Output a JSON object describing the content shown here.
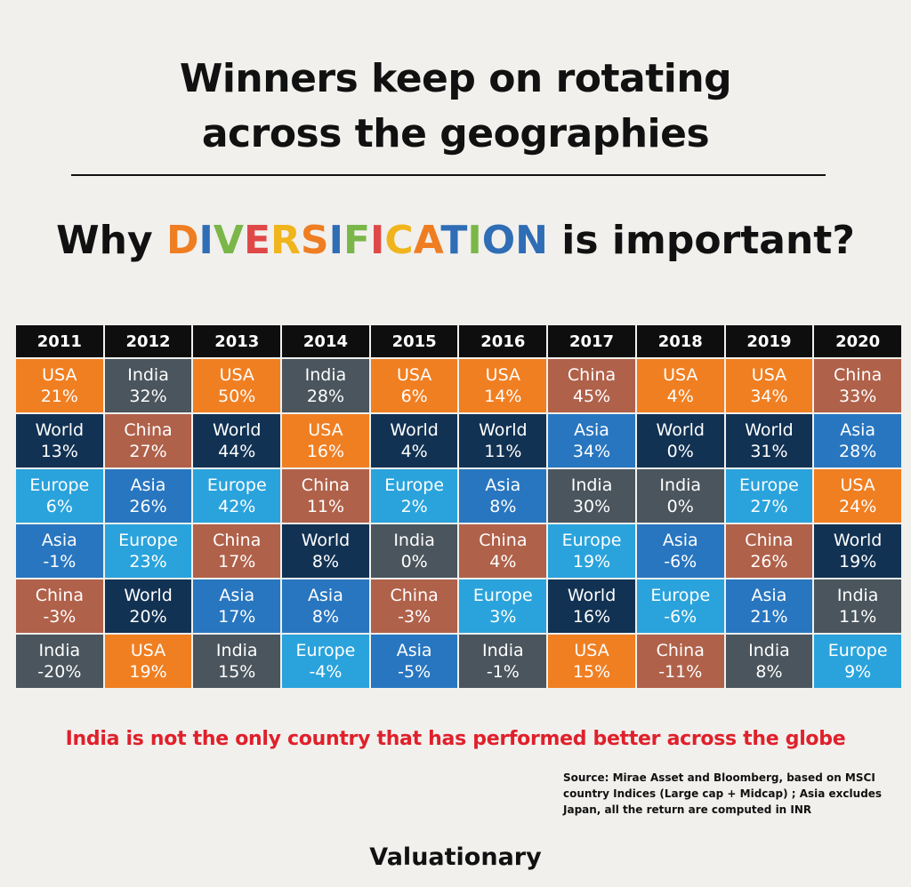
{
  "title": {
    "line1": "Winners keep on rotating",
    "line2": "across the geographies"
  },
  "subtitle": {
    "prefix": "Why ",
    "highlight": "DIVERSIFICATION",
    "suffix": " is important?",
    "highlight_colors": [
      "#ef7d22",
      "#2f6db5",
      "#7ab648",
      "#e04848",
      "#f0b41c",
      "#ef7d22",
      "#2f6db5",
      "#7ab648",
      "#e04848",
      "#f0b41c",
      "#ef7d22",
      "#2f6db5",
      "#7ab648",
      "#2f6db5",
      "#2f6db5"
    ]
  },
  "chart_data": {
    "type": "table",
    "columns": [
      "2011",
      "2012",
      "2013",
      "2014",
      "2015",
      "2016",
      "2017",
      "2018",
      "2019",
      "2020"
    ],
    "region_colors": {
      "USA": "#f07f22",
      "India": "#4a555d",
      "World": "#123253",
      "Europe": "#2aa3dc",
      "Asia": "#2876c0",
      "China": "#b0614a"
    },
    "ranks": [
      [
        {
          "region": "USA",
          "value": "21%"
        },
        {
          "region": "World",
          "value": "13%"
        },
        {
          "region": "Europe",
          "value": "6%"
        },
        {
          "region": "Asia",
          "value": "-1%"
        },
        {
          "region": "China",
          "value": "-3%"
        },
        {
          "region": "India",
          "value": "-20%"
        }
      ],
      [
        {
          "region": "India",
          "value": "32%"
        },
        {
          "region": "China",
          "value": "27%"
        },
        {
          "region": "Asia",
          "value": "26%"
        },
        {
          "region": "Europe",
          "value": "23%"
        },
        {
          "region": "World",
          "value": "20%"
        },
        {
          "region": "USA",
          "value": "19%"
        }
      ],
      [
        {
          "region": "USA",
          "value": "50%"
        },
        {
          "region": "World",
          "value": "44%"
        },
        {
          "region": "Europe",
          "value": "42%"
        },
        {
          "region": "China",
          "value": "17%"
        },
        {
          "region": "Asia",
          "value": "17%"
        },
        {
          "region": "India",
          "value": "15%"
        }
      ],
      [
        {
          "region": "India",
          "value": "28%"
        },
        {
          "region": "USA",
          "value": "16%"
        },
        {
          "region": "China",
          "value": "11%"
        },
        {
          "region": "World",
          "value": "8%"
        },
        {
          "region": "Asia",
          "value": "8%"
        },
        {
          "region": "Europe",
          "value": "-4%"
        }
      ],
      [
        {
          "region": "USA",
          "value": "6%"
        },
        {
          "region": "World",
          "value": "4%"
        },
        {
          "region": "Europe",
          "value": "2%"
        },
        {
          "region": "India",
          "value": "0%"
        },
        {
          "region": "China",
          "value": "-3%"
        },
        {
          "region": "Asia",
          "value": "-5%"
        }
      ],
      [
        {
          "region": "USA",
          "value": "14%"
        },
        {
          "region": "World",
          "value": "11%"
        },
        {
          "region": "Asia",
          "value": "8%"
        },
        {
          "region": "China",
          "value": "4%"
        },
        {
          "region": "Europe",
          "value": "3%"
        },
        {
          "region": "India",
          "value": "-1%"
        }
      ],
      [
        {
          "region": "China",
          "value": "45%"
        },
        {
          "region": "Asia",
          "value": "34%"
        },
        {
          "region": "India",
          "value": "30%"
        },
        {
          "region": "Europe",
          "value": "19%"
        },
        {
          "region": "World",
          "value": "16%"
        },
        {
          "region": "USA",
          "value": "15%"
        }
      ],
      [
        {
          "region": "USA",
          "value": "4%"
        },
        {
          "region": "World",
          "value": "0%"
        },
        {
          "region": "India",
          "value": "0%"
        },
        {
          "region": "Asia",
          "value": "-6%"
        },
        {
          "region": "Europe",
          "value": "-6%"
        },
        {
          "region": "China",
          "value": "-11%"
        }
      ],
      [
        {
          "region": "USA",
          "value": "34%"
        },
        {
          "region": "World",
          "value": "31%"
        },
        {
          "region": "Europe",
          "value": "27%"
        },
        {
          "region": "China",
          "value": "26%"
        },
        {
          "region": "Asia",
          "value": "21%"
        },
        {
          "region": "India",
          "value": "8%"
        }
      ],
      [
        {
          "region": "China",
          "value": "33%"
        },
        {
          "region": "Asia",
          "value": "28%"
        },
        {
          "region": "USA",
          "value": "24%"
        },
        {
          "region": "World",
          "value": "19%"
        },
        {
          "region": "India",
          "value": "11%"
        },
        {
          "region": "Europe",
          "value": "9%"
        }
      ]
    ]
  },
  "footer_note": "India is not the only country that has performed better across the globe",
  "source": "Source: Mirae Asset and Bloomberg, based on MSCI country Indices (Large cap + Midcap) ; Asia excludes Japan, all the return are computed in INR",
  "brand": "Valuationary"
}
